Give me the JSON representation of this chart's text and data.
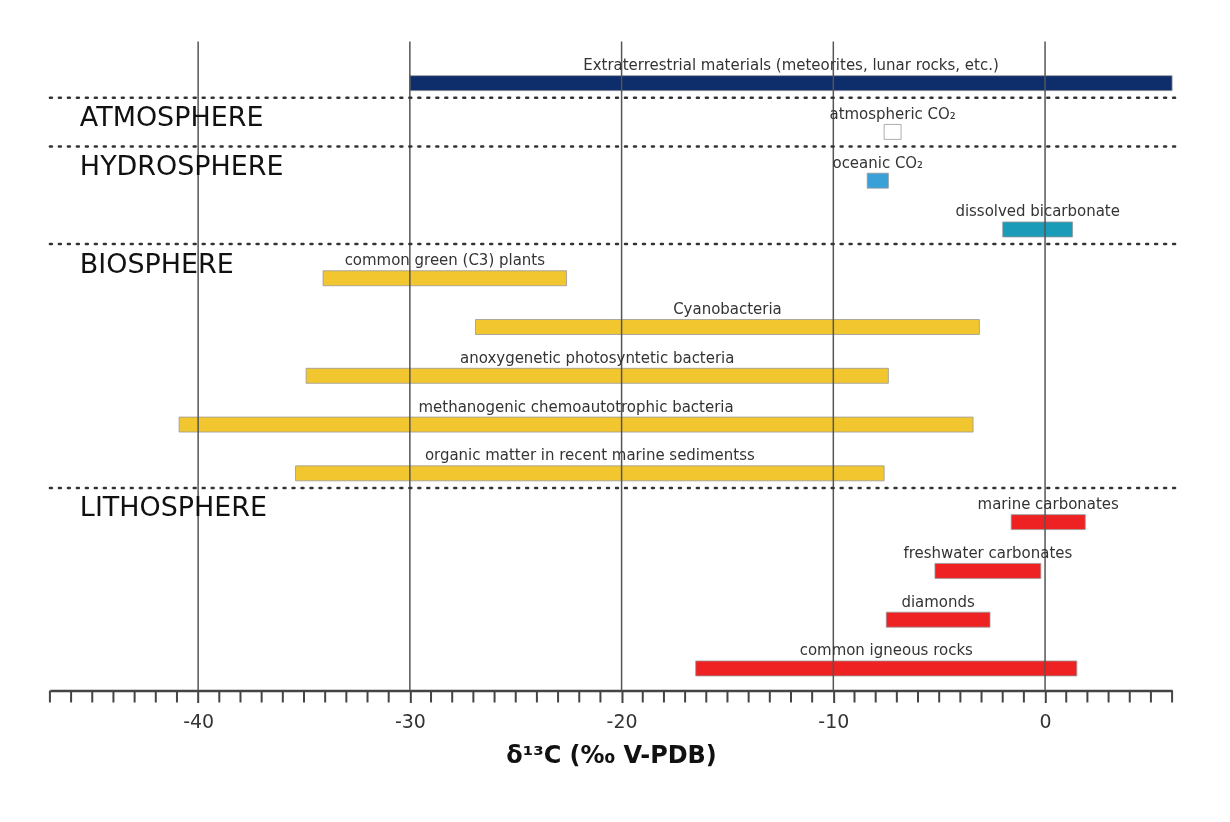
{
  "chart_data": {
    "type": "bar",
    "orientation": "horizontal",
    "xlabel": "δ¹³C (‰ V-PDB)",
    "categories": [
      "Extraterrestrial materials (meteorites, lunar rocks, etc.)",
      "atmospheric CO₂",
      "oceanic CO₂",
      "dissolved bicarbonate",
      "common green (C3) plants",
      "Cyanobacteria",
      "anoxygenetic photosyntetic bacteria",
      "methanogenic chemoautotrophic bacteria",
      "organic matter in recent marine sedimentss",
      "marine carbonates",
      "freshwater carbonates",
      "diamonds",
      "common igneous rocks"
    ],
    "base": [
      -30,
      -7.6,
      -8.4,
      -2.0,
      -34.1,
      -26.9,
      -34.9,
      -40.9,
      -35.4,
      -1.6,
      -5.2,
      -7.5,
      -16.5
    ],
    "values": [
      36,
      0.8,
      1.0,
      3.3,
      11.5,
      23.8,
      27.5,
      37.5,
      27.8,
      3.5,
      5.0,
      4.9,
      18.0
    ],
    "colors": [
      "#0d2d6b",
      "#ffffff",
      "#3aa0d8",
      "#1a9bb8",
      "#f2c62f",
      "#f2c62f",
      "#f2c62f",
      "#f2c62f",
      "#f2c62f",
      "#ee2222",
      "#ee2222",
      "#ee2222",
      "#ee2222"
    ],
    "ref_lines": [
      {
        "axis": "y",
        "value": "atmospheric CO₂",
        "label": "ATMOSPHERE",
        "line_style": "dotted"
      },
      {
        "axis": "y",
        "value": "oceanic CO₂",
        "label": "HYDROSPHERE",
        "line_style": "dotted"
      },
      {
        "axis": "y",
        "value": "common green (C3) plants",
        "label": "BIOSPHERE",
        "line_style": "dotted"
      },
      {
        "axis": "y",
        "value": "marine carbonates",
        "label": "LITHOSPHERE",
        "line_style": "dotted"
      }
    ],
    "xlim": [
      -47,
      6
    ],
    "xticks": [
      {
        "value": -47,
        "label": null
      },
      {
        "value": -46,
        "label": null
      },
      {
        "value": -45,
        "label": null
      },
      {
        "value": -44,
        "label": null
      },
      {
        "value": -43,
        "label": null
      },
      {
        "value": -42,
        "label": null
      },
      {
        "value": -41,
        "label": null
      },
      -40,
      {
        "value": -39,
        "label": null
      },
      {
        "value": -38,
        "label": null
      },
      {
        "value": -37,
        "label": null
      },
      {
        "value": -36,
        "label": null
      },
      {
        "value": -35,
        "label": null
      },
      {
        "value": -34,
        "label": null
      },
      {
        "value": -33,
        "label": null
      },
      {
        "value": -32,
        "label": null
      },
      {
        "value": -31,
        "label": null
      },
      -30,
      {
        "value": -29,
        "label": null
      },
      {
        "value": -28,
        "label": null
      },
      {
        "value": -27,
        "label": null
      },
      {
        "value": -26,
        "label": null
      },
      {
        "value": -25,
        "label": null
      },
      {
        "value": -24,
        "label": null
      },
      {
        "value": -23,
        "label": null
      },
      {
        "value": -22,
        "label": null
      },
      {
        "value": -21,
        "label": null
      },
      -20,
      {
        "value": -19,
        "label": null
      },
      {
        "value": -18,
        "label": null
      },
      {
        "value": -17,
        "label": null
      },
      {
        "value": -16,
        "label": null
      },
      {
        "value": -15,
        "label": null
      },
      {
        "value": -14,
        "label": null
      },
      {
        "value": -13,
        "label": null
      },
      {
        "value": -12,
        "label": null
      },
      {
        "value": -11,
        "label": null
      },
      -10,
      {
        "value": -9,
        "label": null
      },
      {
        "value": -8,
        "label": null
      },
      {
        "value": -7,
        "label": null
      },
      {
        "value": -6,
        "label": null
      },
      {
        "value": -5,
        "label": null
      },
      {
        "value": -4,
        "label": null
      },
      {
        "value": -3,
        "label": null
      },
      {
        "value": -2,
        "label": null
      },
      {
        "value": -1,
        "label": null
      },
      0,
      {
        "value": 1,
        "label": null
      },
      {
        "value": 2,
        "label": null
      },
      {
        "value": 3,
        "label": null
      },
      {
        "value": 4,
        "label": null
      },
      {
        "value": 5,
        "label": null
      },
      {
        "value": 6,
        "label": null
      }
    ],
    "grid": "x",
    "legend": false
  }
}
